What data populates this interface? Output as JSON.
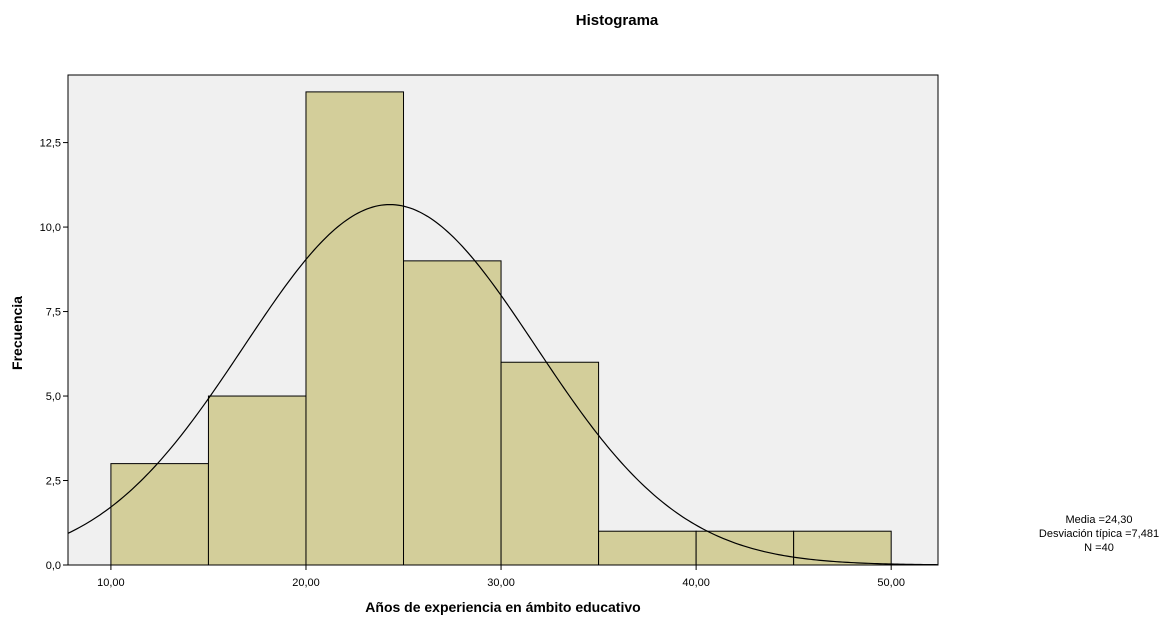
{
  "chart_data": {
    "type": "bar",
    "subtype": "histogram",
    "title": "Histograma",
    "xlabel": "Años de experiencia en ámbito educativo",
    "ylabel": "Frecuencia",
    "bins": [
      {
        "start": 10,
        "end": 15,
        "count": 3
      },
      {
        "start": 15,
        "end": 20,
        "count": 5
      },
      {
        "start": 20,
        "end": 25,
        "count": 14
      },
      {
        "start": 25,
        "end": 30,
        "count": 9
      },
      {
        "start": 30,
        "end": 35,
        "count": 6
      },
      {
        "start": 35,
        "end": 40,
        "count": 1
      },
      {
        "start": 40,
        "end": 45,
        "count": 1
      },
      {
        "start": 45,
        "end": 50,
        "count": 1
      }
    ],
    "xlim": [
      7.8,
      52.4
    ],
    "ylim": [
      0,
      14.5
    ],
    "xticks": [
      10,
      20,
      30,
      40,
      50
    ],
    "xtick_labels": [
      "10,00",
      "20,00",
      "30,00",
      "40,00",
      "50,00"
    ],
    "yticks": [
      0,
      2.5,
      5,
      7.5,
      10,
      12.5
    ],
    "ytick_labels": [
      "0,0",
      "2,5",
      "5,0",
      "7,5",
      "10,0",
      "12,5"
    ],
    "normal_curve": {
      "mean": 24.3,
      "sd": 7.481,
      "n": 40,
      "bin_width": 5
    },
    "stats": {
      "mean_label": "Media =24,30",
      "sd_label": "Desviación típica =7,481",
      "n_label": "N =40"
    },
    "colors": {
      "bar_fill": "#d3ce9a",
      "bar_stroke": "#000000",
      "plot_background": "#f0f0f0",
      "curve": "#000000"
    },
    "grid": false
  }
}
